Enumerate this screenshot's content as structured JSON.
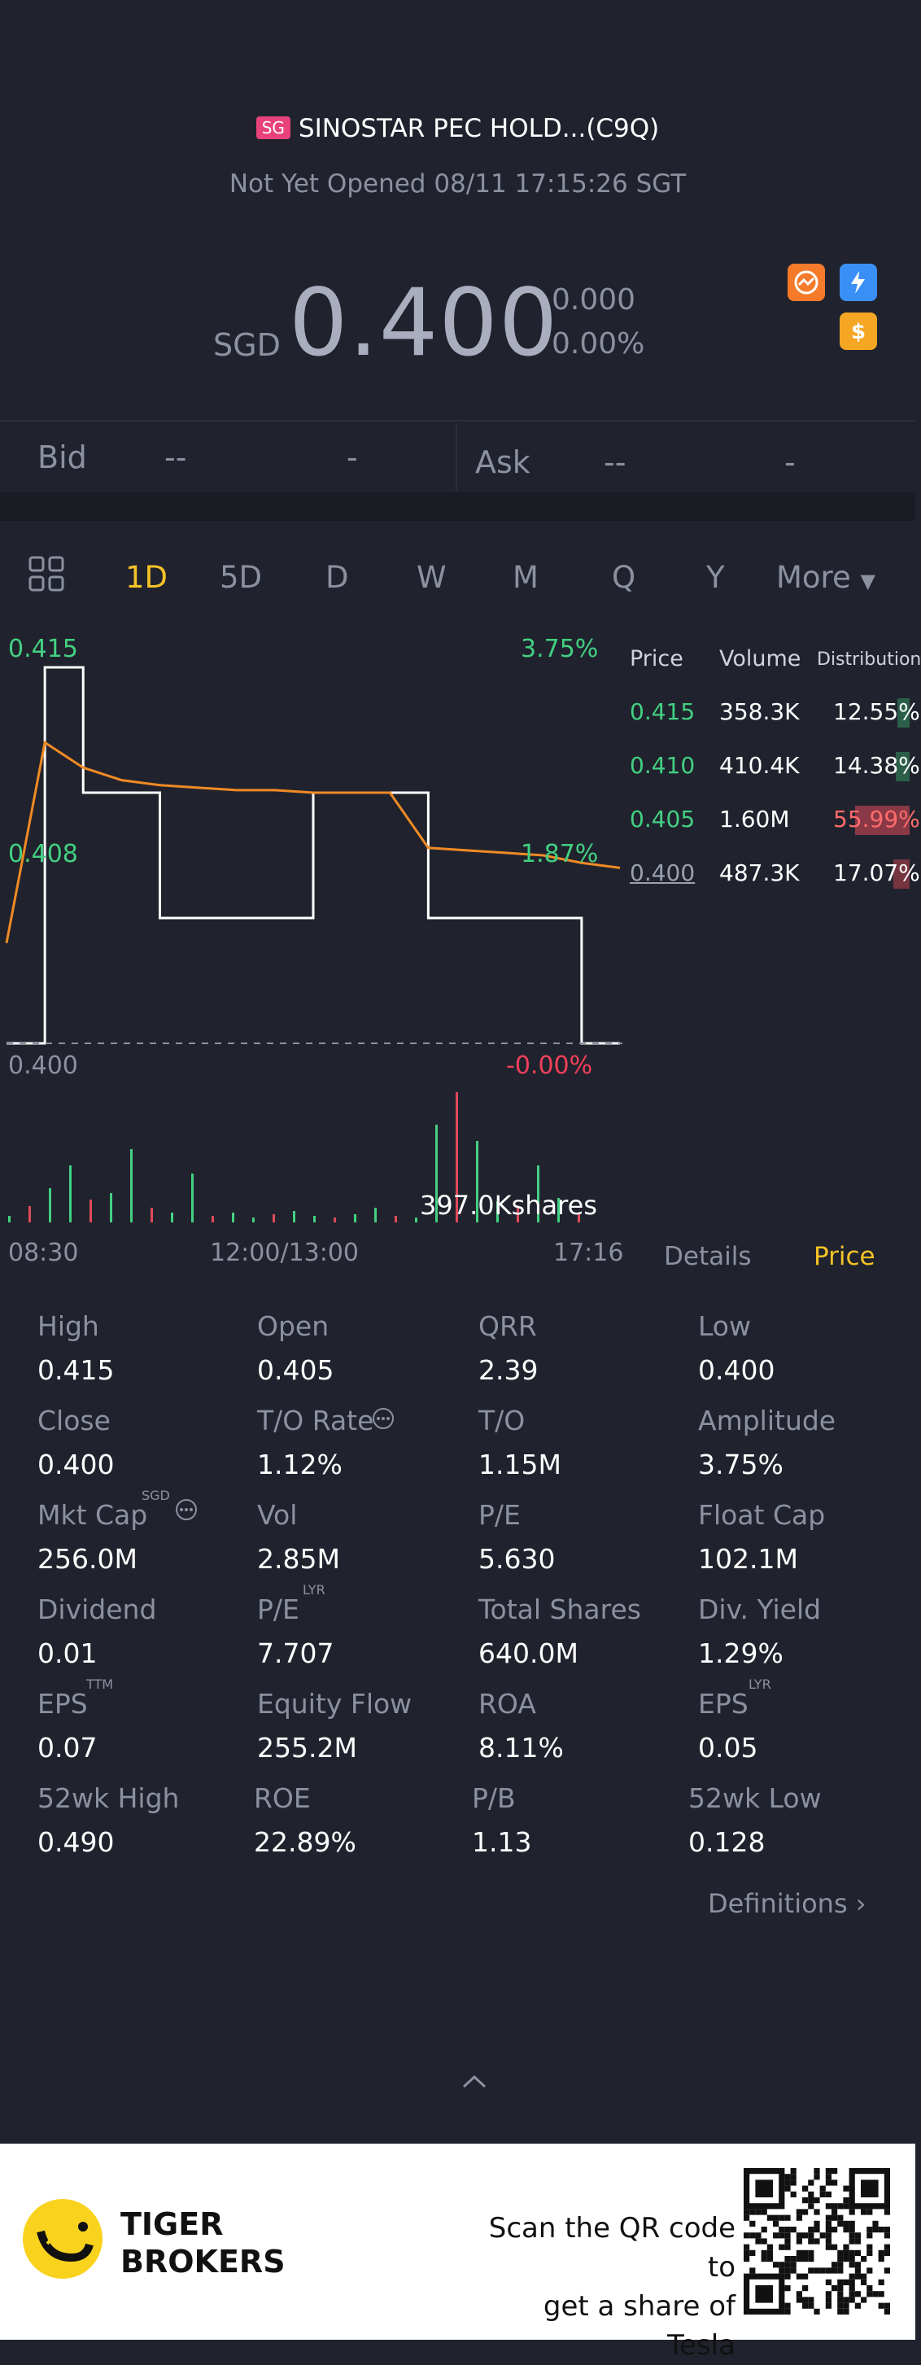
{
  "header": {
    "market_badge": "SG",
    "stock_name": "SINOSTAR PEC HOLD...(C9Q)",
    "status": "Not Yet Opened 08/11 17:15:26 SGT",
    "currency": "SGD",
    "price": "0.400",
    "change": "0.000",
    "change_pct": "0.00%"
  },
  "quote": {
    "bid_label": "Bid",
    "bid_price": "--",
    "bid_size": "-",
    "ask_label": "Ask",
    "ask_price": "--",
    "ask_size": "-"
  },
  "tabs": [
    "1D",
    "5D",
    "D",
    "W",
    "M",
    "Q",
    "Y",
    "More"
  ],
  "active_tab": "1D",
  "chart_labels": {
    "y_top": "0.415",
    "y_mid": "0.408",
    "y_bot": "0.400",
    "pct_top": "3.75%",
    "pct_mid": "1.87%",
    "pct_bot": "-0.00%",
    "x_start": "08:30",
    "x_mid": "12:00/13:00",
    "x_end": "17:16",
    "volume_label": "397.0Kshares"
  },
  "chart_data": {
    "type": "line",
    "x": [
      "08:30",
      "09:00",
      "09:30",
      "10:00",
      "10:30",
      "11:00",
      "11:30",
      "12:00/13:00",
      "13:30",
      "14:00",
      "14:30",
      "15:00",
      "15:30",
      "16:00",
      "16:30",
      "17:00",
      "17:16"
    ],
    "series": [
      {
        "values": [
          0.4,
          0.415,
          0.41,
          0.41,
          0.405,
          0.405,
          0.405,
          0.405,
          0.41,
          0.41,
          0.41,
          0.405,
          0.405,
          0.405,
          0.405,
          0.4,
          0.4
        ]
      },
      {
        "values": [
          0.404,
          0.412,
          0.411,
          0.4105,
          0.4103,
          0.4102,
          0.4101,
          0.4101,
          0.41,
          0.41,
          0.41,
          0.4078,
          0.4077,
          0.4076,
          0.4075,
          0.4072,
          0.407
        ]
      }
    ],
    "ylim": [
      0.4,
      0.415
    ]
  },
  "price_distribution": {
    "headers": [
      "Price",
      "Volume",
      "Distribution"
    ],
    "rows": [
      {
        "price": "0.415",
        "volume": "358.3K",
        "pct": "12.55%"
      },
      {
        "price": "0.410",
        "volume": "410.4K",
        "pct": "14.38%"
      },
      {
        "price": "0.405",
        "volume": "1.60M",
        "pct": "55.99%"
      },
      {
        "price": "0.400",
        "volume": "487.3K",
        "pct": "17.07%"
      }
    ]
  },
  "detail_tabs": {
    "details": "Details",
    "price": "Price"
  },
  "stats": [
    [
      {
        "label": "High",
        "value": "0.415"
      },
      {
        "label": "Open",
        "value": "0.405"
      },
      {
        "label": "QRR",
        "value": "2.39"
      },
      {
        "label": "Low",
        "value": "0.400"
      }
    ],
    [
      {
        "label": "Close",
        "value": "0.400"
      },
      {
        "label": "T/O Rate",
        "value": "1.12%"
      },
      {
        "label": "T/O",
        "value": "1.15M"
      },
      {
        "label": "Amplitude",
        "value": "3.75%"
      }
    ],
    [
      {
        "label": "Mkt Cap",
        "value": "256.0M"
      },
      {
        "label": "Vol",
        "value": "2.85M"
      },
      {
        "label": "P/E",
        "value": "5.630"
      },
      {
        "label": "Float Cap",
        "value": "102.1M"
      }
    ],
    [
      {
        "label": "Dividend",
        "value": "0.01"
      },
      {
        "label": "P/E",
        "value": "7.707"
      },
      {
        "label": "Total Shares",
        "value": "640.0M"
      },
      {
        "label": "Div. Yield",
        "value": "1.29%"
      }
    ],
    [
      {
        "label": "EPS",
        "value": "0.07"
      },
      {
        "label": "Equity Flow",
        "value": "255.2M"
      },
      {
        "label": "ROA",
        "value": "8.11%"
      },
      {
        "label": "EPS",
        "value": "0.05"
      }
    ],
    [
      {
        "label": "52wk High",
        "value": "0.490"
      },
      {
        "label": "ROE",
        "value": "22.89%"
      },
      {
        "label": "P/B",
        "value": "1.13"
      },
      {
        "label": "52wk Low",
        "value": "0.128"
      }
    ]
  ],
  "sups": {
    "mkt_cap": "SGD",
    "pe_lyr": "LYR",
    "eps_ttm": "TTM",
    "eps_lyr": "LYR"
  },
  "definitions": "Definitions",
  "footer": {
    "brand_line1": "TIGER",
    "brand_line2": "BROKERS",
    "scan_line1": "Scan the QR code to",
    "scan_line2": "get a share of Tesla"
  }
}
